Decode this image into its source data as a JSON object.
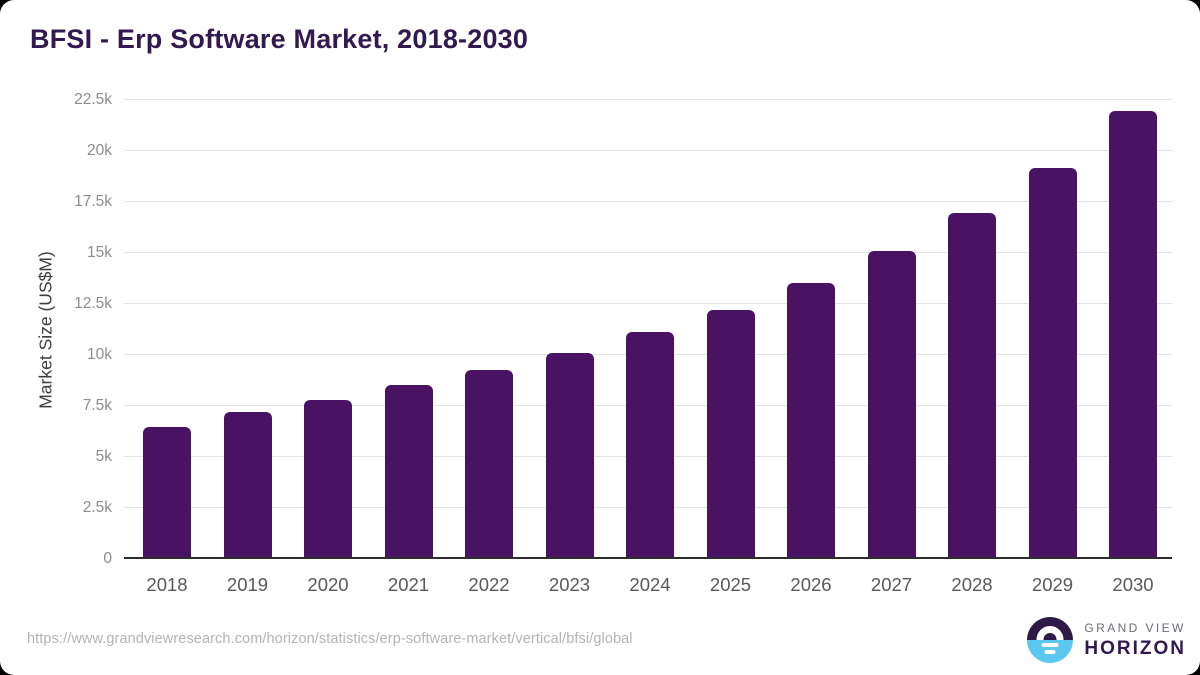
{
  "chart_data": {
    "type": "bar",
    "title": "BFSI - Erp Software Market, 2018-2030",
    "categories": [
      "2018",
      "2019",
      "2020",
      "2021",
      "2022",
      "2023",
      "2024",
      "2025",
      "2026",
      "2027",
      "2028",
      "2029",
      "2030"
    ],
    "values": [
      6450,
      7200,
      7800,
      8550,
      9250,
      10100,
      11150,
      12200,
      13550,
      15100,
      16950,
      19150,
      21950
    ],
    "xlabel": "",
    "ylabel": "Market Size (US$M)",
    "ylim": [
      0,
      22500
    ],
    "yticks": [
      0,
      2500,
      5000,
      7500,
      10000,
      12500,
      15000,
      17500,
      20000,
      22500
    ],
    "ytick_labels": [
      "0",
      "2.5k",
      "5k",
      "7.5k",
      "10k",
      "12.5k",
      "15k",
      "17.5k",
      "20k",
      "22.5k"
    ],
    "grid": true,
    "legend": false,
    "bar_color": "#4a1263",
    "title_color": "#32194f"
  },
  "footer": {
    "source_url": "https://www.grandviewresearch.com/horizon/statistics/erp-software-market/vertical/bfsi/global",
    "logo": {
      "line1": "GRAND VIEW",
      "line2": "HORIZON",
      "circle_top_color": "#2e1a47",
      "circle_bottom_color": "#5bc8f0"
    }
  }
}
